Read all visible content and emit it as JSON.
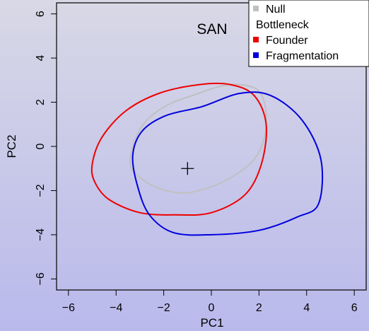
{
  "chart_data": {
    "type": "line",
    "title": "",
    "panel_label": "SAN",
    "xlabel": "PC1",
    "ylabel": "PC2",
    "xlim": [
      -6.5,
      6.5
    ],
    "ylim": [
      -6.5,
      6.5
    ],
    "x_ticks": [
      -6,
      -4,
      -2,
      0,
      2,
      4,
      6
    ],
    "x_tick_labels": [
      "−6",
      "−4",
      "−2",
      "0",
      "2",
      "4",
      "6"
    ],
    "y_ticks": [
      -6,
      -4,
      -2,
      0,
      2,
      4,
      6
    ],
    "y_tick_labels": [
      "−6",
      "−4",
      "−2",
      "0",
      "2",
      "4",
      "6"
    ],
    "grid": false,
    "legend": {
      "placement": "top-right",
      "entries": [
        {
          "label": "Null",
          "color": "#c0c0c0",
          "marker": true
        },
        {
          "label": "Bottleneck",
          "marker": false
        },
        {
          "label": "Founder",
          "color": "#ee0000",
          "marker": true
        },
        {
          "label": "Fragmentation",
          "color": "#0000dd",
          "marker": true
        }
      ]
    },
    "center_marker": {
      "x": -1.0,
      "y": -1.0,
      "symbol": "+"
    },
    "series": [
      {
        "name": "Null",
        "color": "#c0c0c0",
        "closed": true,
        "points": [
          [
            -3.4,
            -0.8
          ],
          [
            -3.2,
            0.3
          ],
          [
            -2.7,
            1.2
          ],
          [
            -1.8,
            1.9
          ],
          [
            -0.8,
            2.3
          ],
          [
            0.3,
            2.7
          ],
          [
            1.2,
            2.8
          ],
          [
            2.0,
            2.5
          ],
          [
            2.3,
            1.5
          ],
          [
            2.2,
            0.3
          ],
          [
            1.7,
            -0.7
          ],
          [
            0.5,
            -1.6
          ],
          [
            -1.0,
            -2.1
          ],
          [
            -2.2,
            -1.9
          ],
          [
            -3.0,
            -1.4
          ]
        ]
      },
      {
        "name": "Founder",
        "color": "#ee0000",
        "closed": true,
        "points": [
          [
            -5.0,
            -0.8
          ],
          [
            -4.6,
            0.4
          ],
          [
            -3.6,
            1.6
          ],
          [
            -2.2,
            2.4
          ],
          [
            -0.5,
            2.8
          ],
          [
            0.8,
            2.8
          ],
          [
            1.8,
            2.3
          ],
          [
            2.3,
            1.0
          ],
          [
            2.1,
            -0.8
          ],
          [
            1.4,
            -2.2
          ],
          [
            0.0,
            -3.0
          ],
          [
            -1.5,
            -3.1
          ],
          [
            -3.0,
            -3.0
          ],
          [
            -4.3,
            -2.4
          ],
          [
            -4.9,
            -1.6
          ]
        ]
      },
      {
        "name": "Fragmentation",
        "color": "#0000dd",
        "closed": true,
        "points": [
          [
            -3.3,
            -0.4
          ],
          [
            -2.9,
            0.7
          ],
          [
            -1.9,
            1.4
          ],
          [
            -0.4,
            1.8
          ],
          [
            1.2,
            2.4
          ],
          [
            2.5,
            2.3
          ],
          [
            3.8,
            1.2
          ],
          [
            4.6,
            -0.6
          ],
          [
            4.5,
            -2.6
          ],
          [
            3.6,
            -3.2
          ],
          [
            2.0,
            -3.8
          ],
          [
            0.0,
            -4.0
          ],
          [
            -1.6,
            -3.9
          ],
          [
            -2.6,
            -3.1
          ],
          [
            -3.1,
            -1.8
          ]
        ]
      }
    ]
  }
}
